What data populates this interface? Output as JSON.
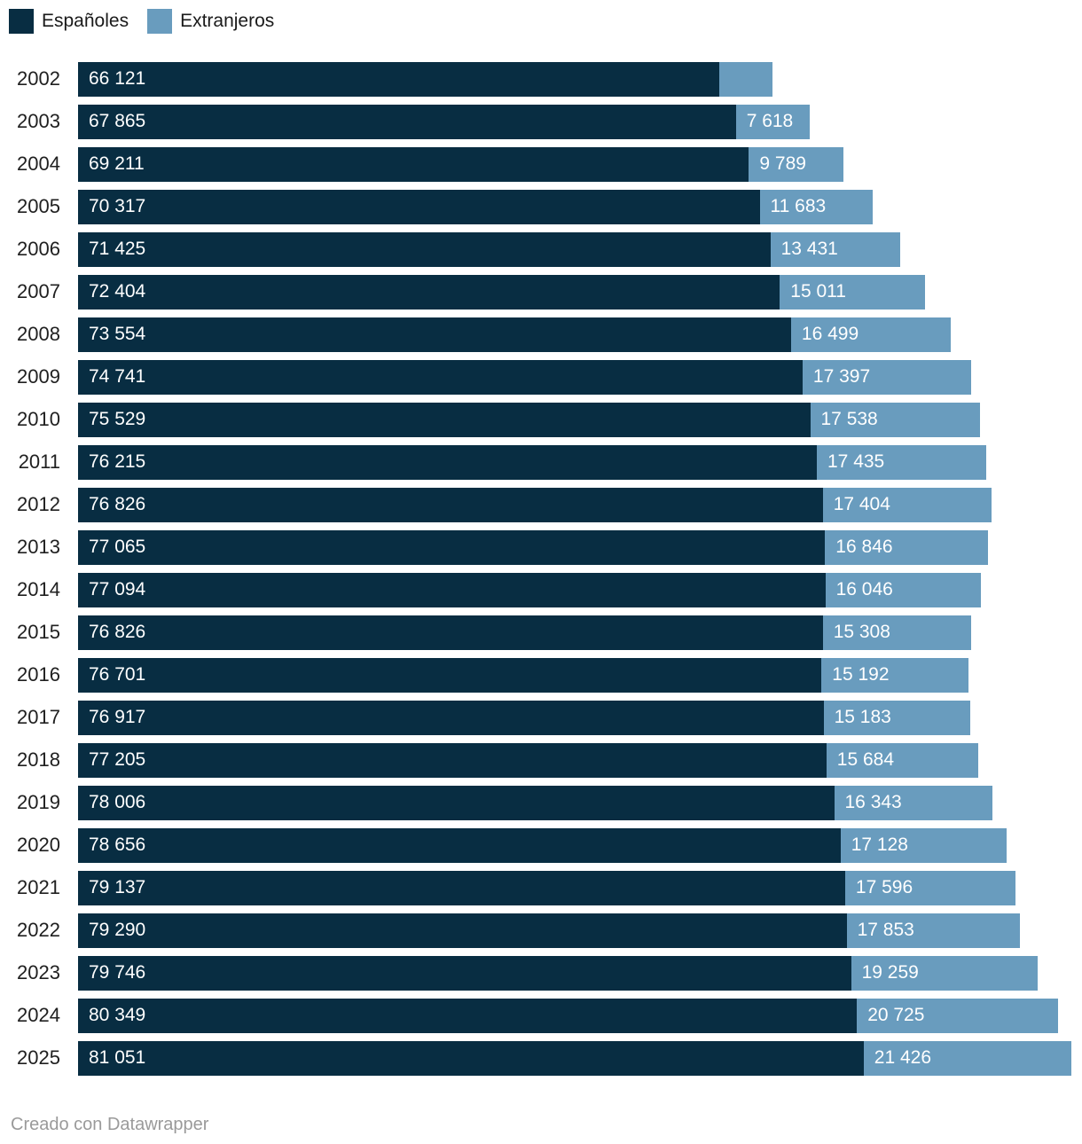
{
  "legend": {
    "items": [
      {
        "label": "Españoles",
        "color": "#082d42"
      },
      {
        "label": "Extranjeros",
        "color": "#699cbe"
      }
    ]
  },
  "footer": {
    "credit": "Creado con Datawrapper"
  },
  "colors": {
    "espanoles": "#082d42",
    "extranjeros": "#699cbe",
    "value_label": "#ffffff",
    "year_label": "#202020",
    "attribution": "#9a9a9a",
    "background": "#ffffff"
  },
  "chart_data": {
    "type": "bar",
    "orientation": "horizontal",
    "stacked": true,
    "title": "",
    "xlabel": "",
    "ylabel": "",
    "legend_position": "top-left",
    "grid": false,
    "x_max_total": 102477,
    "categories": [
      "2002",
      "2003",
      "2004",
      "2005",
      "2006",
      "2007",
      "2008",
      "2009",
      "2010",
      "2011",
      "2012",
      "2013",
      "2014",
      "2015",
      "2016",
      "2017",
      "2018",
      "2019",
      "2020",
      "2021",
      "2022",
      "2023",
      "2024",
      "2025"
    ],
    "series": [
      {
        "name": "Españoles",
        "color": "#082d42",
        "values": [
          66121,
          67865,
          69211,
          70317,
          71425,
          72404,
          73554,
          74741,
          75529,
          76215,
          76826,
          77065,
          77094,
          76826,
          76701,
          76917,
          77205,
          78006,
          78656,
          79137,
          79290,
          79746,
          80349,
          81051
        ],
        "labels": [
          "66 121",
          "67 865",
          "69 211",
          "70 317",
          "71 425",
          "72 404",
          "73 554",
          "74 741",
          "75 529",
          "76 215",
          "76 826",
          "77 065",
          "77 094",
          "76 826",
          "76 701",
          "76 917",
          "77 205",
          "78 006",
          "78 656",
          "79 137",
          "79 290",
          "79 746",
          "80 349",
          "81 051"
        ]
      },
      {
        "name": "Extranjeros",
        "color": "#699cbe",
        "values": [
          5490,
          7618,
          9789,
          11683,
          13431,
          15011,
          16499,
          17397,
          17538,
          17435,
          17404,
          16846,
          16046,
          15308,
          15192,
          15183,
          15684,
          16343,
          17128,
          17596,
          17853,
          19259,
          20725,
          21426
        ],
        "labels": [
          "",
          "7 618",
          "9 789",
          "11 683",
          "13 431",
          "15 011",
          "16 499",
          "17 397",
          "17 538",
          "17 435",
          "17 404",
          "16 846",
          "16 046",
          "15 308",
          "15 192",
          "15 183",
          "15 684",
          "16 343",
          "17 128",
          "17 596",
          "17 853",
          "19 259",
          "20 725",
          "21 426"
        ]
      }
    ]
  }
}
